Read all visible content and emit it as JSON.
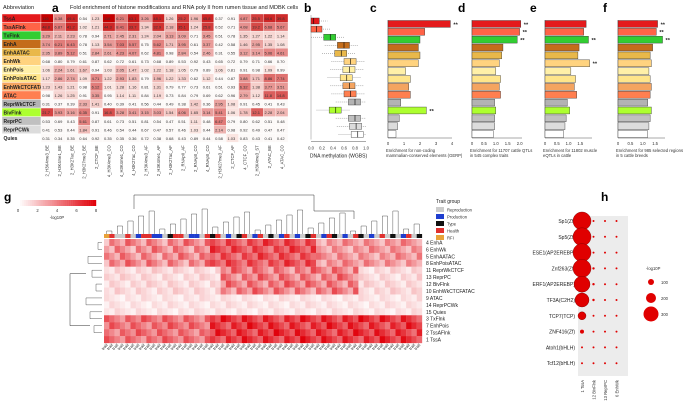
{
  "colors": {
    "TssA": "#e41a1c",
    "TssAFlnk": "#ff6347",
    "TxFlnk": "#32cd32",
    "EnhA": "#c46d1b",
    "EnhAATAC": "#e9b84a",
    "EnhWk": "#ffd37f",
    "EnhPois": "#fff0a8",
    "EnhPoisATAC": "#ffe58a",
    "EnhWkCTCFATAC": "#f4a460",
    "ATAC": "#ff7f50",
    "ReprWkCTCF": "#b3b3b3",
    "BivFlnk": "#adff2f",
    "ReprPC": "#c0c0c0",
    "ReprPCWk": "#dcdcdc",
    "Quies": "#ffffff",
    "reproduction": "#cccccc",
    "production": "#1f3ecf",
    "type": "#111111",
    "health": "#e0312f",
    "rfi": "#e8a33a"
  },
  "panels": {
    "a": {
      "label": "a",
      "title": "Fold enrichment of histone modifications and RNA poly II from rumen tissue and MDBK cells",
      "header": "Abbreviation",
      "states": [
        "TssA",
        "TssAFlnk",
        "TxFlnk",
        "EnhA",
        "EnhAATAC",
        "EnhWk",
        "EnhPois",
        "EnhPoisATAC",
        "EnhWkCTCFATAC",
        "ATAC",
        "ReprWkCTCF",
        "BivFlnk",
        "ReprPC",
        "ReprPCWk",
        "Quies"
      ],
      "marks": [
        "2_H3K4me3_BE",
        "2_H3K4me1_BE",
        "2_H3K27ac_BE",
        "2_H3K27me3_BE",
        "2_CTCF_BE",
        "4_H3K4me3_CO",
        "4_H3K4me1_CO",
        "4_H3K27ac_CO",
        "2_H3K4me3_AF",
        "2_H3K4me1_AF",
        "2_H3K27ac_AF",
        "2_RNApII_AF",
        "2_RNApII_CO",
        "4_RNApII_CO",
        "2_H3K27me3_AF",
        "2_CTCF_AF",
        "4_CTCF_CO",
        "2_H3K4me3_ST",
        "2_ATAC_BE",
        "4_ATAC_CO"
      ],
      "values": [
        [
          "116",
          "4.38",
          "49.4",
          "0.54",
          "1.23",
          "116",
          "6.21",
          "63.1",
          "3.26",
          "48.1",
          "1.26",
          "25.2",
          "1.96",
          "45.8",
          "0.37",
          "0.91",
          "4.87",
          "25.5",
          "44.6",
          "39.8"
        ],
        [
          "48.8",
          "6.87",
          "41.2",
          "1.02",
          "1.21",
          "44.3",
          "8.41",
          "33.7",
          "1.34",
          "32.9",
          "2.18",
          "35.1",
          "1.24",
          "25.8",
          "0.52",
          "0.71",
          "4.08",
          "19.2",
          "6.68",
          "5.67"
        ],
        [
          "3.29",
          "2.11",
          "2.23",
          "0.78",
          "0.94",
          "2.71",
          "2.45",
          "2.31",
          "1.24",
          "2.04",
          "3.13",
          "3.09",
          "0.71",
          "3.45",
          "0.51",
          "0.78",
          "1.35",
          "1.27",
          "1.22",
          "1.14"
        ],
        [
          "3.74",
          "6.21",
          "6.43",
          "0.78",
          "1.13",
          "3.54",
          "7.03",
          "5.57",
          "0.75",
          "5.62",
          "1.71",
          "3.95",
          "0.61",
          "3.37",
          "0.42",
          "0.58",
          "1.46",
          "2.95",
          "1.35",
          "1.08"
        ],
        [
          "2.35",
          "3.89",
          "5.12",
          "0.51",
          "2.84",
          "2.61",
          "4.23",
          "4.07",
          "0.62",
          "4.81",
          "0.98",
          "2.84",
          "0.54",
          "2.46",
          "0.31",
          "0.55",
          "3.12",
          "3.14",
          "5.06",
          "4.61"
        ],
        [
          "0.68",
          "0.80",
          "0.79",
          "0.61",
          "0.87",
          "0.62",
          "0.72",
          "0.61",
          "0.73",
          "0.68",
          "0.89",
          "0.53",
          "0.92",
          "0.43",
          "0.65",
          "0.72",
          "0.79",
          "0.71",
          "0.66",
          "0.70"
        ],
        [
          "1.06",
          "2.24",
          "1.61",
          "1.67",
          "0.94",
          "1.03",
          "2.05",
          "1.47",
          "1.02",
          "1.22",
          "1.18",
          "1.05",
          "0.79",
          "0.89",
          "1.06",
          "0.81",
          "0.91",
          "0.98",
          "1.09",
          "0.99"
        ],
        [
          "1.17",
          "2.86",
          "2.74",
          "1.09",
          "4.71",
          "1.22",
          "2.93",
          "1.83",
          "0.79",
          "1.96",
          "1.22",
          "1.33",
          "0.62",
          "1.12",
          "0.44",
          "0.87",
          "3.88",
          "1.71",
          "8.86",
          "7.74"
        ],
        [
          "1.23",
          "1.43",
          "1.21",
          "0.98",
          "6.12",
          "1.01",
          "1.28",
          "1.16",
          "0.81",
          "1.31",
          "0.79",
          "0.77",
          "0.73",
          "0.61",
          "0.51",
          "0.93",
          "6.32",
          "1.38",
          "3.77",
          "3.51"
        ],
        [
          "0.98",
          "1.26",
          "1.25",
          "0.91",
          "3.35",
          "0.95",
          "1.14",
          "1.11",
          "0.84",
          "1.19",
          "0.73",
          "0.84",
          "0.79",
          "0.69",
          "0.62",
          "0.96",
          "2.79",
          "1.12",
          "11.8",
          "14.8"
        ],
        [
          "0.31",
          "0.37",
          "0.39",
          "2.33",
          "1.41",
          "0.40",
          "0.39",
          "0.41",
          "0.56",
          "0.44",
          "0.49",
          "0.38",
          "1.42",
          "0.36",
          "2.95",
          "1.08",
          "0.91",
          "0.45",
          "0.41",
          "0.43"
        ],
        [
          "21.7",
          "3.93",
          "3.16",
          "6.35",
          "0.91",
          "16.8",
          "3.28",
          "3.41",
          "3.15",
          "3.03",
          "1.54",
          "4.06",
          "1.65",
          "3.14",
          "5.41",
          "1.06",
          "1.78",
          "12.1",
          "2.28",
          "2.04"
        ],
        [
          "0.53",
          "0.69",
          "0.43",
          "5.61",
          "0.87",
          "0.61",
          "0.73",
          "0.51",
          "0.81",
          "0.54",
          "0.47",
          "0.51",
          "1.11",
          "0.48",
          "6.47",
          "0.79",
          "0.80",
          "0.62",
          "0.51",
          "0.48"
        ],
        [
          "0.41",
          "0.53",
          "0.44",
          "1.84",
          "0.91",
          "0.46",
          "0.54",
          "0.44",
          "0.67",
          "0.47",
          "0.57",
          "0.46",
          "1.03",
          "0.44",
          "2.14",
          "0.98",
          "0.92",
          "0.49",
          "0.47",
          "0.47"
        ],
        [
          "0.31",
          "0.34",
          "0.35",
          "0.64",
          "0.92",
          "0.35",
          "0.35",
          "0.36",
          "0.72",
          "0.38",
          "0.68",
          "0.43",
          "0.89",
          "0.44",
          "0.58",
          "1.03",
          "0.83",
          "0.43",
          "0.41",
          "0.42"
        ]
      ]
    },
    "b": {
      "label": "b",
      "xlabel": "DNA methylation (WGBS)",
      "ticks": [
        "0.0",
        "0.2",
        "0.4",
        "0.6",
        "0.8",
        "1.0"
      ]
    },
    "c": {
      "label": "c",
      "xlabel": "Enrichment for non-coding mammalian-conserved elements (GERP)",
      "ticks": [
        "0",
        "1",
        "2",
        "3",
        "4"
      ],
      "stars": "**"
    },
    "d": {
      "label": "d",
      "xlabel": "Enrichment for 11707 cattle QTLs in 545 complex traits",
      "ticks": [
        "0",
        "0.5",
        "1.0",
        "1.5",
        "2.0"
      ],
      "stars": "**"
    },
    "e": {
      "label": "e",
      "xlabel": "Enrichment for 11802 muscle eQTLs in cattle",
      "ticks": [
        "0",
        "0.5",
        "1.0",
        "1.5"
      ],
      "stars": "**"
    },
    "f": {
      "label": "f",
      "xlabel": "Enrichment for 985 selected regions in 5 cattle breeds",
      "ticks": [
        "0",
        "0.5",
        "1.0",
        "1.5"
      ],
      "stars": "**"
    },
    "g": {
      "label": "g",
      "colorbar_label": "-log10P",
      "colorbar_ticks": [
        "0",
        "2",
        "4",
        "6",
        "8"
      ],
      "rows": [
        "4 EnhA",
        "6 EnhWk",
        "5 EnhAATAC",
        "8 EnhPoisATAC",
        "11 ReprWkCTCF",
        "13 ReprPC",
        "12 BivFlnk",
        "10 EnhWkCTCFATAC",
        "9 ATAC",
        "14 ReprPCWk",
        "15 Quies",
        "3 TxFlnk",
        "7 EnhPois",
        "2 TssAFlnk",
        "1 TssA"
      ],
      "legend_title": "Trait group",
      "legend": [
        "Reproduction",
        "Production",
        "Type",
        "Health",
        "RFI"
      ]
    },
    "h": {
      "label": "h",
      "tfs": [
        "Sp1(Zf)",
        "Sp5(Zf)",
        "ESE1(AP2EREBP)",
        "Znf263(Zf)",
        "ERF1(AP2EREBP)",
        "TF3A(C2H2)",
        "TCP7(TCP)",
        "ZNF416(Zf)",
        "Atoh1(bHLH)",
        "Tcf12(bHLH)"
      ],
      "states": [
        "1 TssA",
        "12 BivFlnk",
        "13 ReprPC",
        "6 EnhWk"
      ],
      "size_title": "-log10P",
      "size_ticks": [
        "100",
        "200",
        "300"
      ]
    }
  },
  "chart_data": [
    {
      "type": "heatmap",
      "panel": "a",
      "title": "Fold enrichment of histone modifications and RNA poly II from rumen tissue and MDBK cells",
      "note": "values as in panels.a.values"
    },
    {
      "type": "bar",
      "panel": "c",
      "xlabel": "Enrichment for non-coding mammalian-conserved elements (GERP)",
      "categories": [
        "TssA",
        "TssAFlnk",
        "TxFlnk",
        "EnhA",
        "EnhAATAC",
        "EnhWk",
        "EnhPois",
        "EnhPoisATAC",
        "EnhWkCTCFATAC",
        "ATAC",
        "ReprWkCTCF",
        "BivFlnk",
        "ReprPC",
        "ReprPCWk",
        "Quies"
      ],
      "values": [
        3.9,
        2.3,
        2.0,
        1.9,
        2.0,
        1.9,
        1.1,
        1.4,
        1.3,
        1.4,
        0.8,
        2.4,
        0.7,
        0.6,
        0.5
      ],
      "xlim": [
        0,
        4
      ]
    },
    {
      "type": "bar",
      "panel": "d",
      "xlabel": "Enrichment for 11707 cattle QTLs in 545 complex traits",
      "categories": [
        "TssA",
        "TssAFlnk",
        "TxFlnk",
        "EnhA",
        "EnhAATAC",
        "EnhWk",
        "EnhPois",
        "EnhPoisATAC",
        "EnhWkCTCFATAC",
        "ATAC",
        "ReprWkCTCF",
        "BivFlnk",
        "ReprPC",
        "ReprPCWk",
        "Quies"
      ],
      "values": [
        2.05,
        2.0,
        1.9,
        1.3,
        1.25,
        1.15,
        1.0,
        1.2,
        1.15,
        1.2,
        0.95,
        1.0,
        0.95,
        0.95,
        0.9
      ],
      "xlim": [
        0,
        2.1
      ]
    },
    {
      "type": "bar",
      "panel": "e",
      "xlabel": "Enrichment for 11802 muscle eQTLs in cattle",
      "categories": [
        "TssA",
        "TssAFlnk",
        "TxFlnk",
        "EnhA",
        "EnhAATAC",
        "EnhWk",
        "EnhPois",
        "EnhPoisATAC",
        "EnhWkCTCFATAC",
        "ATAC",
        "ReprWkCTCF",
        "BivFlnk",
        "ReprPC",
        "ReprPCWk",
        "Quies"
      ],
      "values": [
        1.75,
        1.65,
        1.85,
        1.45,
        1.4,
        1.9,
        1.1,
        1.3,
        1.25,
        1.35,
        0.95,
        1.05,
        0.9,
        0.85,
        0.8
      ],
      "xlim": [
        0,
        2.0
      ]
    },
    {
      "type": "bar",
      "panel": "f",
      "xlabel": "Enrichment for 985 selected regions in 5 cattle breeds",
      "categories": [
        "TssA",
        "TssAFlnk",
        "TxFlnk",
        "EnhA",
        "EnhAATAC",
        "EnhWk",
        "EnhPois",
        "EnhPoisATAC",
        "EnhWkCTCFATAC",
        "ATAC",
        "ReprWkCTCF",
        "BivFlnk",
        "ReprPC",
        "ReprPCWk",
        "Quies"
      ],
      "values": [
        1.6,
        1.55,
        1.8,
        1.4,
        1.3,
        1.35,
        1.25,
        1.3,
        1.35,
        1.3,
        1.2,
        1.35,
        1.3,
        1.25,
        1.2
      ],
      "xlim": [
        0,
        1.9
      ]
    }
  ]
}
